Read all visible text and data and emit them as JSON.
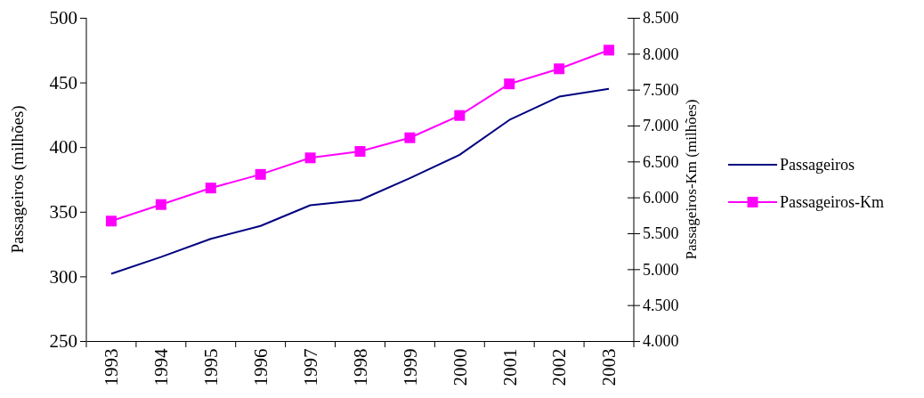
{
  "chart_data": {
    "type": "line",
    "ylabel": "Passageiros (milhões)",
    "y2label": "Passageiros-Km (milhões)",
    "categories": [
      "1993",
      "1994",
      "1995",
      "1996",
      "1997",
      "1998",
      "1999",
      "2000",
      "2001",
      "2002",
      "2003"
    ],
    "series": [
      {
        "name": "Passageiros",
        "color": "#000080",
        "marker": "none",
        "values": [
          302,
          315,
          329,
          339,
          355,
          359,
          376,
          394,
          421,
          439,
          445
        ]
      },
      {
        "name": "Passageiros-Km",
        "color": "#ff00ff",
        "marker": "square",
        "axis": "y2",
        "values": [
          5670,
          5900,
          6130,
          6320,
          6550,
          6640,
          6830,
          7140,
          7580,
          7790,
          8050
        ]
      }
    ],
    "ylim": [
      250,
      500
    ],
    "yticks": [
      250,
      300,
      350,
      400,
      450,
      500
    ],
    "y2lim": [
      4000,
      8500
    ],
    "y2ticks": [
      {
        "value": 4000,
        "label": "4.000"
      },
      {
        "value": 4500,
        "label": "4.500"
      },
      {
        "value": 5000,
        "label": "5.000"
      },
      {
        "value": 5500,
        "label": "5.500"
      },
      {
        "value": 6000,
        "label": "6.000"
      },
      {
        "value": 6500,
        "label": "6.500"
      },
      {
        "value": 7000,
        "label": "7.000"
      },
      {
        "value": 7500,
        "label": "7.500"
      },
      {
        "value": 8000,
        "label": "8.000"
      },
      {
        "value": 8500,
        "label": "8.500"
      }
    ],
    "grid": false,
    "legend": "right",
    "line_style": "solid"
  }
}
